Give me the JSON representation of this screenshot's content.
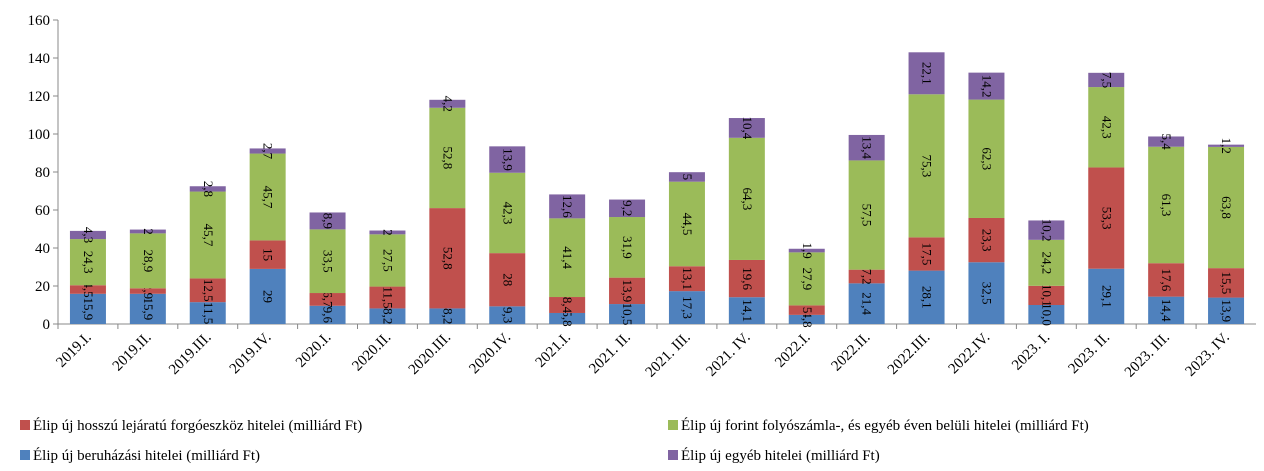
{
  "chart_data": {
    "type": "bar",
    "stacked": true,
    "categories": [
      "2019.I.",
      "2019.II.",
      "2019.III.",
      "2019.IV.",
      "2020.I.",
      "2020.II.",
      "2020.III.",
      "2020.IV.",
      "2021.I.",
      "2021. II.",
      "2021. III.",
      "2021. IV.",
      "2022.I.",
      "2022.II.",
      "2022.III.",
      "2022.IV.",
      "2023. I.",
      "2023. II.",
      "2023. III.",
      "2023. IV."
    ],
    "series": [
      {
        "name": "Élip új beruházási hitelei (milliárd Ft)",
        "color": "#4f81bd",
        "values": [
          15.9,
          15.9,
          11.5,
          29,
          9.6,
          8.2,
          8.2,
          9.3,
          5.8,
          10.5,
          17.3,
          14.1,
          4.8,
          21.4,
          28.1,
          32.5,
          10,
          29.1,
          14.4,
          13.9
        ],
        "value_labels": [
          "15,9",
          "15,9",
          "11,5",
          "29",
          "9,6",
          "8,2",
          "8,2",
          "9,3",
          "5,8",
          "10,5",
          "17,3",
          "14,1",
          "4,8",
          "21,4",
          "28,1",
          "32,5",
          "10,0",
          "29,1",
          "14,4",
          "13,9"
        ]
      },
      {
        "name": "Élip új hosszú lejáratú forgóeszköz hitelei (milliárd Ft)",
        "color": "#c0504d",
        "values": [
          4.5,
          2.9,
          12.5,
          15,
          6.7,
          11.5,
          52.8,
          28,
          8.4,
          13.9,
          13.1,
          19.6,
          5,
          7.2,
          17.5,
          23.3,
          10.1,
          53.3,
          17.6,
          15.5
        ],
        "value_labels": [
          "4,5",
          "2,9",
          "12,5",
          "15",
          "6,7",
          "11,5",
          "52,8",
          "28",
          "8,4",
          "13,9",
          "13,1",
          "19,6",
          "5",
          "7,2",
          "17,5",
          "23,3",
          "10,1",
          "53,3",
          "17,6",
          "15,5"
        ]
      },
      {
        "name": "Élip új forint folyószámla-, és egyéb éven belüli hitelei (milliárd Ft)",
        "color": "#9bbb59",
        "values": [
          24.3,
          28.9,
          45.7,
          45.7,
          33.5,
          27.5,
          52.8,
          42.3,
          41.4,
          31.9,
          44.5,
          64.3,
          27.9,
          57.5,
          75.3,
          62.3,
          24.2,
          42.3,
          61.3,
          63.8
        ],
        "value_labels": [
          "24,3",
          "28,9",
          "45,7",
          "45,7",
          "33,5",
          "27,5",
          "52,8",
          "42,3",
          "41,4",
          "31,9",
          "44,5",
          "64,3",
          "27,9",
          "57,5",
          "75,3",
          "62,3",
          "24,2",
          "42,3",
          "61,3",
          "63,8"
        ]
      },
      {
        "name": "Élip új egyéb hitelei (milliárd Ft)",
        "color": "#8064a2",
        "values": [
          4.3,
          2,
          2.8,
          2.7,
          8.9,
          2,
          4.2,
          13.9,
          12.6,
          9.2,
          5,
          10.4,
          1.9,
          13.4,
          22.1,
          14.2,
          10.2,
          7.5,
          5.4,
          1.2
        ],
        "value_labels": [
          "4,3",
          "2",
          "2,8",
          "2,7",
          "8,9",
          "2",
          "4,2",
          "13,9",
          "12,6",
          "9,2",
          "5",
          "10,4",
          "1,9",
          "13,4",
          "22,1",
          "14,2",
          "10,2",
          "7,5",
          "5,4",
          "1,2"
        ]
      }
    ],
    "ylim": [
      0,
      160
    ],
    "yticks": [
      0,
      20,
      40,
      60,
      80,
      100,
      120,
      140,
      160
    ],
    "grid": false
  }
}
